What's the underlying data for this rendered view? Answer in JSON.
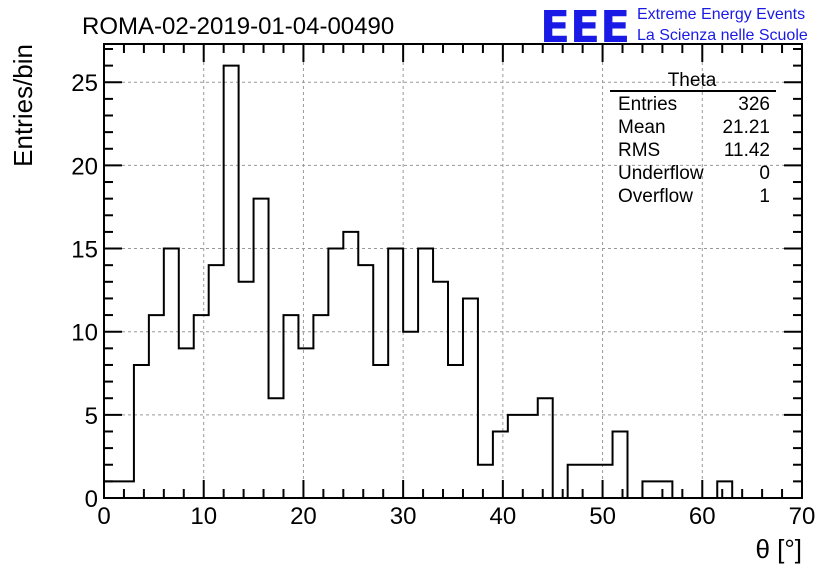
{
  "header": {
    "title": "ROMA-02-2019-01-04-00490",
    "logo": "EEE",
    "brand_line1": "Extreme Energy Events",
    "brand_line2": "La Scienza nelle Scuole",
    "brand_color": "#1a1ae6"
  },
  "stats": {
    "name": "Theta",
    "rows": [
      {
        "label": "Entries",
        "value": "326"
      },
      {
        "label": "Mean",
        "value": "21.21"
      },
      {
        "label": "RMS",
        "value": "11.42"
      },
      {
        "label": "Underflow",
        "value": "0"
      },
      {
        "label": "Overflow",
        "value": "1"
      }
    ]
  },
  "chart_data": {
    "type": "histogram",
    "xlabel": "θ [°]",
    "ylabel": "Entries/bin",
    "xlim": [
      0,
      70
    ],
    "ylim": [
      0,
      27.3
    ],
    "x_ticks": [
      0,
      10,
      20,
      30,
      40,
      50,
      60,
      70
    ],
    "y_ticks": [
      0,
      5,
      10,
      15,
      20,
      25
    ],
    "grid": true,
    "bin_width": 1.5,
    "bin_start": 0,
    "values": [
      1,
      1,
      8,
      11,
      15,
      9,
      11,
      14,
      26,
      13,
      18,
      6,
      11,
      9,
      11,
      15,
      16,
      14,
      8,
      15,
      10,
      15,
      13,
      8,
      12,
      2,
      4,
      5,
      5,
      6,
      0,
      2,
      2,
      2,
      4,
      0,
      1,
      1,
      0,
      0,
      0,
      1,
      0,
      0,
      0,
      0,
      0
    ]
  }
}
